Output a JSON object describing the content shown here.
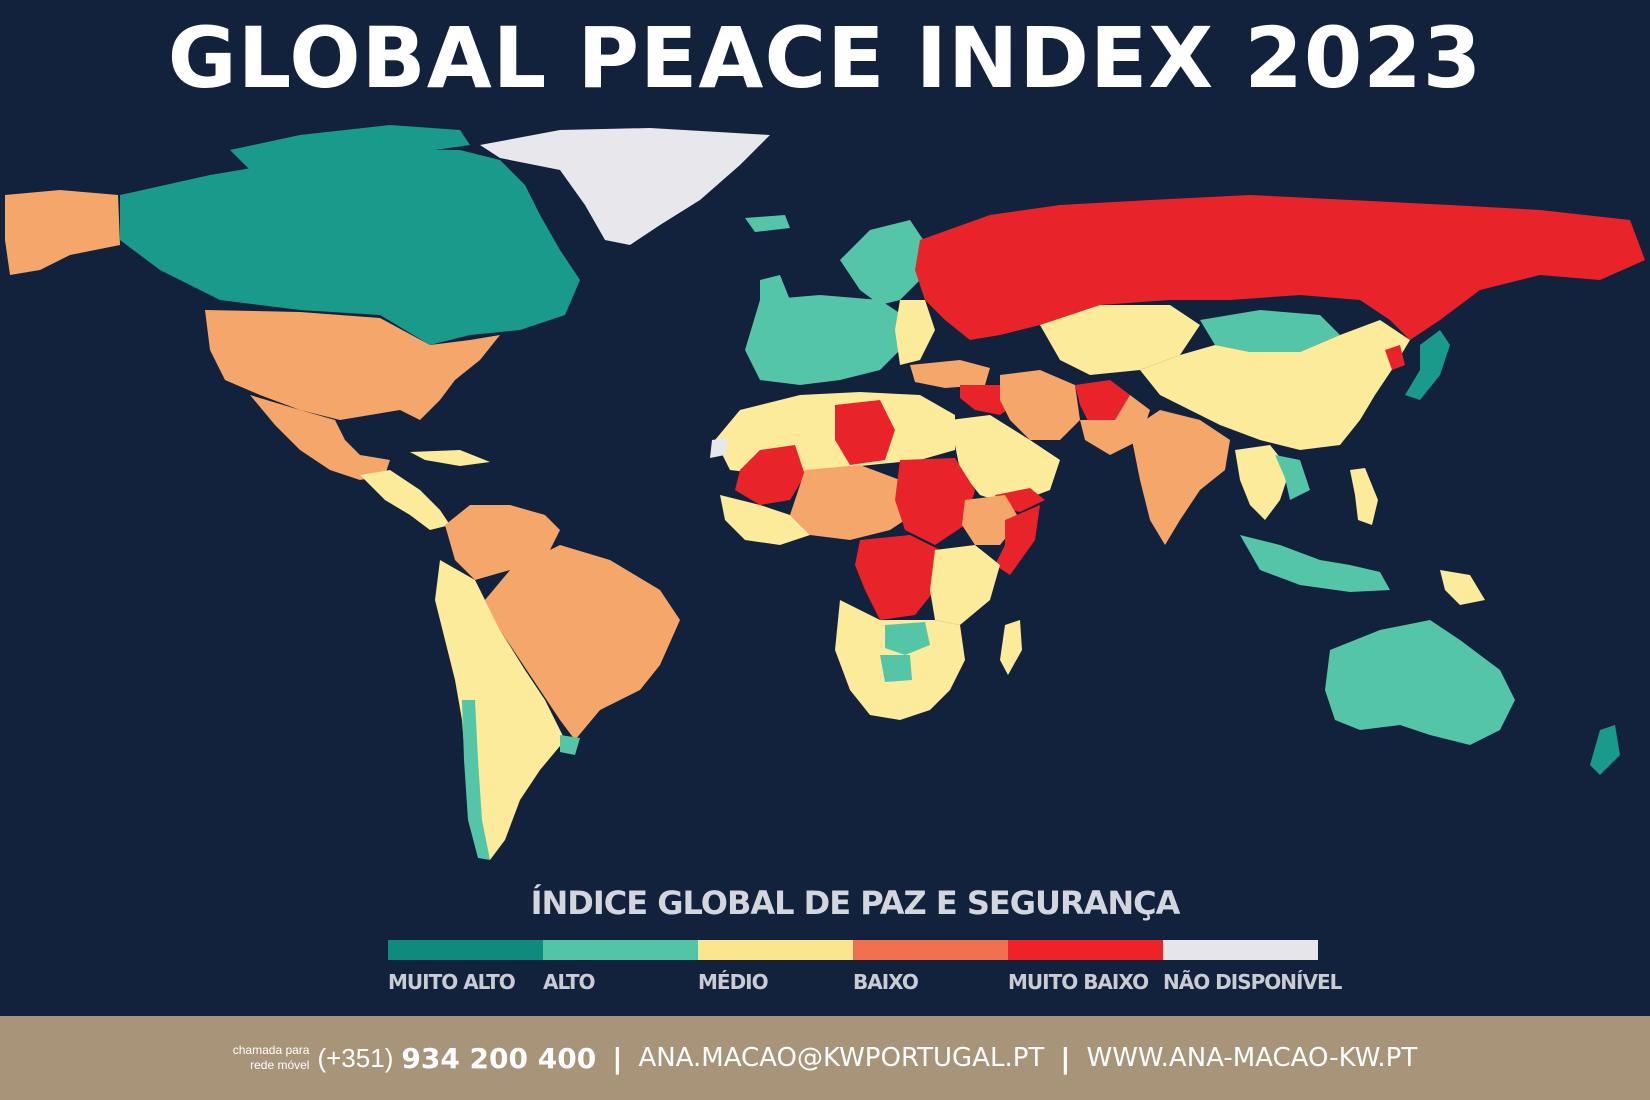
{
  "title": "GLOBAL PEACE INDEX 2023",
  "legend": {
    "title": "ÍNDICE GLOBAL DE PAZ E SEGURANÇA",
    "items": [
      {
        "label": "MUITO ALTO",
        "color": "#0e8b7d"
      },
      {
        "label": "ALTO",
        "color": "#52c4a8"
      },
      {
        "label": "MÉDIO",
        "color": "#fbe58e"
      },
      {
        "label": "BAIXO",
        "color": "#f07050"
      },
      {
        "label": "MUITO BAIXO",
        "color": "#ee2227"
      },
      {
        "label": "NÃO DISPONÍVEL",
        "color": "#e6e6ea"
      }
    ]
  },
  "map_colors": {
    "ocean": "#12223d",
    "baixo_map": "#f5a66b",
    "muito_alto": "#1a9a8a",
    "alto": "#55c5a8",
    "medio": "#fbeb9a",
    "muito_baixo": "#e8242a",
    "nao_disponivel": "#e8e8ec"
  },
  "footer": {
    "small_line1": "chamada para",
    "small_line2": "rede móvel",
    "prefix": "(+351)",
    "phone": "934 200 400",
    "separator": "|",
    "email": "ANA.MACAO@KWPORTUGAL.PT",
    "website": "WWW.ANA-MACAO-KW.PT"
  }
}
